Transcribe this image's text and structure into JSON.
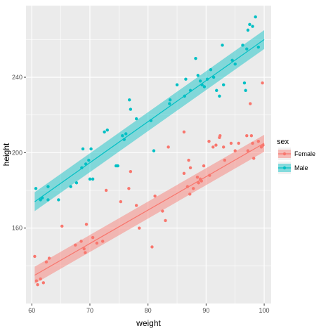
{
  "chart_data": {
    "type": "scatter",
    "xlabel": "weight",
    "ylabel": "height",
    "xlim": [
      59.0,
      101.2
    ],
    "ylim": [
      120.0,
      278.0
    ],
    "x_ticks": [
      "60",
      "70",
      "80",
      "90",
      "100"
    ],
    "y_ticks": [
      "160",
      "200",
      "240"
    ],
    "grid": true,
    "legend": {
      "title": "sex",
      "position": "right",
      "entries": [
        "Female",
        "Male"
      ]
    },
    "series": [
      {
        "name": "Female",
        "color": "#F8766D",
        "fit": {
          "x_start": 60.5,
          "y_start": 135.0,
          "x_end": 100.0,
          "y_end": 205.0,
          "se_halfwidth": 4.5
        },
        "points": [
          [
            60.5,
            145.0
          ],
          [
            60.8,
            132.0
          ],
          [
            61.0,
            130.0
          ],
          [
            61.5,
            133.0
          ],
          [
            62.0,
            131.0
          ],
          [
            62.5,
            142.0
          ],
          [
            63.0,
            144.0
          ],
          [
            65.2,
            161.0
          ],
          [
            67.5,
            151.0
          ],
          [
            68.5,
            153.0
          ],
          [
            69.0,
            149.0
          ],
          [
            69.2,
            147.0
          ],
          [
            69.4,
            162.0
          ],
          [
            70.5,
            155.0
          ],
          [
            71.2,
            152.0
          ],
          [
            72.2,
            153.0
          ],
          [
            72.8,
            180.0
          ],
          [
            75.3,
            174.0
          ],
          [
            76.7,
            181.0
          ],
          [
            77.0,
            190.0
          ],
          [
            78.0,
            172.0
          ],
          [
            78.5,
            160.0
          ],
          [
            80.7,
            150.0
          ],
          [
            81.2,
            177.0
          ],
          [
            82.5,
            169.0
          ],
          [
            83.0,
            164.0
          ],
          [
            83.5,
            203.0
          ],
          [
            86.2,
            189.0
          ],
          [
            86.2,
            211.0
          ],
          [
            86.8,
            182.0
          ],
          [
            87.0,
            196.0
          ],
          [
            87.2,
            178.0
          ],
          [
            87.3,
            192.0
          ],
          [
            87.8,
            181.0
          ],
          [
            88.5,
            187.0
          ],
          [
            88.7,
            184.0
          ],
          [
            89.0,
            186.0
          ],
          [
            89.2,
            185.0
          ],
          [
            89.6,
            193.0
          ],
          [
            90.5,
            206.0
          ],
          [
            90.6,
            188.0
          ],
          [
            91.2,
            203.0
          ],
          [
            91.7,
            204.0
          ],
          [
            92.3,
            208.0
          ],
          [
            92.4,
            209.0
          ],
          [
            93.0,
            203.0
          ],
          [
            93.2,
            196.0
          ],
          [
            94.3,
            205.0
          ],
          [
            95.0,
            201.0
          ],
          [
            95.6,
            205.0
          ],
          [
            97.0,
            209.0
          ],
          [
            97.2,
            201.0
          ],
          [
            97.6,
            226.0
          ],
          [
            97.8,
            209.0
          ],
          [
            98.0,
            205.0
          ],
          [
            98.2,
            197.0
          ],
          [
            99.0,
            206.0
          ],
          [
            99.5,
            203.0
          ],
          [
            99.7,
            237.0
          ],
          [
            99.8,
            204.0
          ]
        ]
      },
      {
        "name": "Male",
        "color": "#00BFC4",
        "fit": {
          "x_start": 60.5,
          "y_start": 174.0,
          "x_end": 100.0,
          "y_end": 260.0,
          "se_halfwidth": 5.0
        },
        "points": [
          [
            60.7,
            181.0
          ],
          [
            61.5,
            175.0
          ],
          [
            61.8,
            176.0
          ],
          [
            62.8,
            182.0
          ],
          [
            62.8,
            175.0
          ],
          [
            64.6,
            175.0
          ],
          [
            66.7,
            182.0
          ],
          [
            67.7,
            184.0
          ],
          [
            68.6,
            192.0
          ],
          [
            68.8,
            202.0
          ],
          [
            69.3,
            194.0
          ],
          [
            69.8,
            196.0
          ],
          [
            70.0,
            186.0
          ],
          [
            70.2,
            202.0
          ],
          [
            70.5,
            186.0
          ],
          [
            72.5,
            211.0
          ],
          [
            73.0,
            212.0
          ],
          [
            74.5,
            193.0
          ],
          [
            74.8,
            193.0
          ],
          [
            75.6,
            209.0
          ],
          [
            75.9,
            207.0
          ],
          [
            76.2,
            210.0
          ],
          [
            76.8,
            228.0
          ],
          [
            77.0,
            223.0
          ],
          [
            78.0,
            218.0
          ],
          [
            80.5,
            217.0
          ],
          [
            81.0,
            201.0
          ],
          [
            83.7,
            226.0
          ],
          [
            83.8,
            228.0
          ],
          [
            85.0,
            236.0
          ],
          [
            86.3,
            230.0
          ],
          [
            86.5,
            239.0
          ],
          [
            87.3,
            233.0
          ],
          [
            88.2,
            250.0
          ],
          [
            88.6,
            241.0
          ],
          [
            89.0,
            238.0
          ],
          [
            89.3,
            236.0
          ],
          [
            89.7,
            235.0
          ],
          [
            90.2,
            239.0
          ],
          [
            90.8,
            244.0
          ],
          [
            91.3,
            240.0
          ],
          [
            91.8,
            233.0
          ],
          [
            92.3,
            230.0
          ],
          [
            92.8,
            257.0
          ],
          [
            93.0,
            236.0
          ],
          [
            94.5,
            249.0
          ],
          [
            95.0,
            247.0
          ],
          [
            96.3,
            257.0
          ],
          [
            96.6,
            237.0
          ],
          [
            96.8,
            233.0
          ],
          [
            97.0,
            255.0
          ],
          [
            97.2,
            265.0
          ],
          [
            97.5,
            268.0
          ],
          [
            98.0,
            267.0
          ],
          [
            98.5,
            272.0
          ],
          [
            99.0,
            256.0
          ]
        ]
      }
    ]
  }
}
